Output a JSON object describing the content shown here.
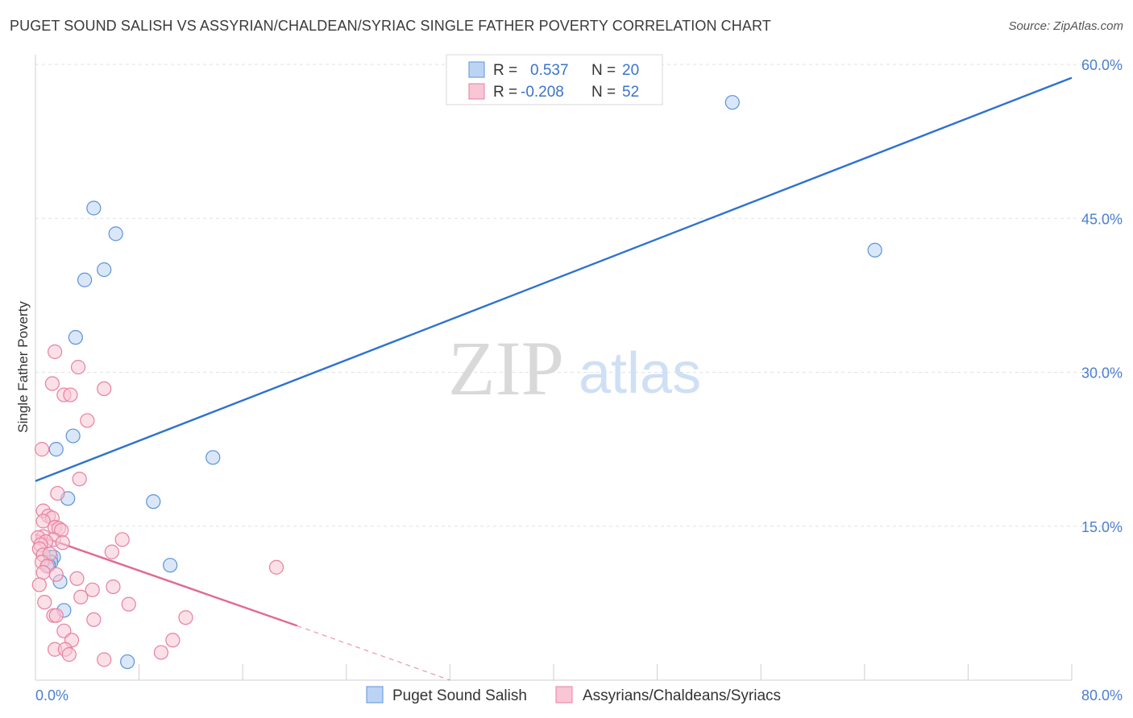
{
  "title": "PUGET SOUND SALISH VS ASSYRIAN/CHALDEAN/SYRIAC SINGLE FATHER POVERTY CORRELATION CHART",
  "source": "Source: ZipAtlas.com",
  "watermark": {
    "zip": "ZIP",
    "atlas": "atlas"
  },
  "chart_data": {
    "type": "scatter",
    "ylabel": "Single Father Poverty",
    "xlim": [
      0,
      80
    ],
    "ylim": [
      0,
      60
    ],
    "x_tick_labels": [
      {
        "v": 0,
        "label": "0.0%"
      },
      {
        "v": 80,
        "label": "80.0%"
      }
    ],
    "y_tick_labels": [
      {
        "v": 15,
        "label": "15.0%"
      },
      {
        "v": 30,
        "label": "30.0%"
      },
      {
        "v": 45,
        "label": "45.0%"
      },
      {
        "v": 60,
        "label": "60.0%"
      }
    ],
    "legend": [
      {
        "r_label": "R =",
        "r_value": "0.537",
        "n_label": "N =",
        "n_value": "20"
      },
      {
        "r_label": "R =",
        "r_value": "-0.208",
        "n_label": "N =",
        "n_value": "52"
      }
    ],
    "series": [
      {
        "name": "Puget Sound Salish",
        "color": "#5b93d8",
        "fill": "#bcd4f3",
        "trend": {
          "x0": 0,
          "y0": 19.4,
          "x1": 80,
          "y1": 58.7,
          "color": "#2f72d0"
        },
        "points": [
          [
            4.5,
            46.0
          ],
          [
            6.2,
            43.5
          ],
          [
            5.3,
            40.0
          ],
          [
            3.8,
            39.0
          ],
          [
            3.1,
            33.4
          ],
          [
            2.9,
            23.8
          ],
          [
            1.6,
            22.5
          ],
          [
            13.7,
            21.7
          ],
          [
            2.5,
            17.7
          ],
          [
            9.1,
            17.4
          ],
          [
            1.2,
            12.0
          ],
          [
            1.4,
            12.0
          ],
          [
            1.2,
            11.5
          ],
          [
            1.0,
            11.2
          ],
          [
            10.4,
            11.2
          ],
          [
            1.9,
            9.6
          ],
          [
            2.2,
            6.8
          ],
          [
            7.1,
            1.8
          ],
          [
            53.8,
            56.3
          ],
          [
            64.8,
            41.9
          ]
        ]
      },
      {
        "name": "Assyrians/Chaldeans/Syriacs",
        "color": "#e6819f",
        "fill": "#f8c6d5",
        "trend": {
          "x0": 0,
          "y0": 14.2,
          "x1": 20.2,
          "y1": 5.3,
          "color": "#e06a94",
          "dash_x1": 32,
          "dash_y1": 0
        },
        "points": [
          [
            1.5,
            32.0
          ],
          [
            3.3,
            30.5
          ],
          [
            1.3,
            28.9
          ],
          [
            5.3,
            28.4
          ],
          [
            2.2,
            27.8
          ],
          [
            2.7,
            27.8
          ],
          [
            4.0,
            25.3
          ],
          [
            0.5,
            22.5
          ],
          [
            3.4,
            19.6
          ],
          [
            1.7,
            18.2
          ],
          [
            0.6,
            16.5
          ],
          [
            1.0,
            16.0
          ],
          [
            1.3,
            15.8
          ],
          [
            0.6,
            15.5
          ],
          [
            1.5,
            14.9
          ],
          [
            1.8,
            14.8
          ],
          [
            2.0,
            14.6
          ],
          [
            0.6,
            14.0
          ],
          [
            0.2,
            13.9
          ],
          [
            1.4,
            13.7
          ],
          [
            0.8,
            13.5
          ],
          [
            2.1,
            13.4
          ],
          [
            6.7,
            13.7
          ],
          [
            0.4,
            13.2
          ],
          [
            0.3,
            12.8
          ],
          [
            0.6,
            12.2
          ],
          [
            5.9,
            12.5
          ],
          [
            1.1,
            12.3
          ],
          [
            0.5,
            11.5
          ],
          [
            0.9,
            11.1
          ],
          [
            0.6,
            10.5
          ],
          [
            18.6,
            11.0
          ],
          [
            1.6,
            10.3
          ],
          [
            3.2,
            9.9
          ],
          [
            0.3,
            9.3
          ],
          [
            6.0,
            9.1
          ],
          [
            4.4,
            8.8
          ],
          [
            3.5,
            8.1
          ],
          [
            0.7,
            7.6
          ],
          [
            7.2,
            7.4
          ],
          [
            1.4,
            6.3
          ],
          [
            1.6,
            6.3
          ],
          [
            11.6,
            6.1
          ],
          [
            4.5,
            5.9
          ],
          [
            2.2,
            4.8
          ],
          [
            2.8,
            3.9
          ],
          [
            10.6,
            3.9
          ],
          [
            1.5,
            3.0
          ],
          [
            2.3,
            3.0
          ],
          [
            2.6,
            2.5
          ],
          [
            9.7,
            2.7
          ],
          [
            5.3,
            2.0
          ]
        ]
      }
    ]
  }
}
